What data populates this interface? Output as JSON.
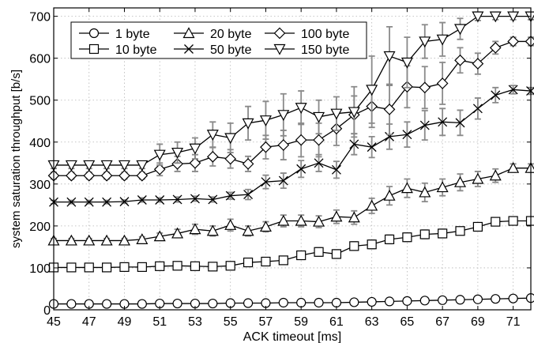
{
  "chart_data": {
    "type": "line",
    "title": "",
    "xlabel": "ACK timeout [ms]",
    "ylabel": "system saturation throughput [b/s]",
    "xlim": [
      45,
      72
    ],
    "ylim": [
      0,
      720
    ],
    "xticks": [
      45,
      47,
      49,
      51,
      53,
      55,
      57,
      59,
      61,
      63,
      65,
      67,
      69,
      71
    ],
    "yticks": [
      0,
      100,
      200,
      300,
      400,
      500,
      600,
      700
    ],
    "grid": true,
    "legend_position": "top-left",
    "x": [
      45,
      46,
      47,
      48,
      49,
      50,
      51,
      52,
      53,
      54,
      55,
      56,
      57,
      58,
      59,
      60,
      61,
      62,
      63,
      64,
      65,
      66,
      67,
      68,
      69,
      70,
      71,
      72
    ],
    "series": [
      {
        "name": "1 byte",
        "marker": "circle",
        "values": [
          14,
          14,
          14,
          14,
          14,
          14,
          15,
          15,
          15,
          15,
          16,
          16,
          16,
          17,
          17,
          17,
          17,
          18,
          19,
          20,
          21,
          22,
          23,
          24,
          25,
          26,
          27,
          28
        ],
        "errors": [
          2,
          2,
          2,
          2,
          2,
          2,
          2,
          2,
          2,
          2,
          2,
          2,
          2,
          2,
          2,
          2,
          2,
          2,
          2,
          3,
          3,
          3,
          3,
          3,
          3,
          3,
          3,
          3
        ]
      },
      {
        "name": "10 byte",
        "marker": "square",
        "values": [
          101,
          101,
          101,
          101,
          102,
          102,
          104,
          105,
          104,
          103,
          105,
          113,
          115,
          118,
          130,
          138,
          133,
          152,
          156,
          168,
          173,
          180,
          182,
          188,
          198,
          210,
          212,
          212
        ],
        "errors": [
          3,
          3,
          3,
          3,
          3,
          3,
          4,
          4,
          4,
          4,
          4,
          6,
          7,
          7,
          8,
          10,
          10,
          10,
          10,
          10,
          10,
          10,
          10,
          8,
          8,
          8,
          6,
          6
        ]
      },
      {
        "name": "20 byte",
        "marker": "triangle-up",
        "values": [
          165,
          165,
          165,
          165,
          165,
          168,
          175,
          182,
          192,
          188,
          202,
          188,
          198,
          212,
          212,
          210,
          222,
          220,
          248,
          272,
          290,
          280,
          292,
          304,
          312,
          320,
          338,
          338
        ],
        "errors": [
          5,
          5,
          5,
          5,
          5,
          6,
          8,
          10,
          12,
          12,
          14,
          12,
          12,
          14,
          14,
          14,
          16,
          16,
          18,
          22,
          22,
          22,
          20,
          20,
          18,
          16,
          10,
          10
        ]
      },
      {
        "name": "50 byte",
        "marker": "x",
        "values": [
          257,
          257,
          257,
          257,
          258,
          262,
          262,
          263,
          265,
          263,
          272,
          275,
          305,
          308,
          336,
          350,
          334,
          395,
          388,
          413,
          418,
          440,
          448,
          446,
          480,
          512,
          525,
          522
        ],
        "errors": [
          4,
          4,
          4,
          4,
          4,
          5,
          5,
          6,
          6,
          6,
          8,
          12,
          16,
          18,
          20,
          20,
          20,
          25,
          25,
          30,
          30,
          35,
          32,
          30,
          25,
          18,
          10,
          8
        ]
      },
      {
        "name": "100 byte",
        "marker": "diamond",
        "values": [
          320,
          320,
          320,
          320,
          320,
          320,
          335,
          348,
          350,
          365,
          360,
          348,
          388,
          393,
          405,
          405,
          432,
          465,
          485,
          478,
          532,
          530,
          540,
          595,
          587,
          625,
          640,
          640
        ],
        "errors": [
          8,
          8,
          8,
          8,
          8,
          8,
          15,
          18,
          20,
          22,
          22,
          18,
          28,
          35,
          40,
          40,
          40,
          45,
          50,
          60,
          50,
          50,
          50,
          30,
          25,
          15,
          10,
          10
        ]
      },
      {
        "name": "150 byte",
        "marker": "triangle-down",
        "values": [
          345,
          345,
          345,
          345,
          345,
          345,
          370,
          375,
          385,
          418,
          410,
          445,
          452,
          465,
          482,
          460,
          468,
          472,
          525,
          605,
          590,
          640,
          645,
          670,
          700,
          700,
          700,
          700
        ],
        "errors": [
          8,
          8,
          8,
          8,
          8,
          8,
          25,
          25,
          25,
          30,
          35,
          40,
          45,
          50,
          40,
          40,
          40,
          60,
          80,
          70,
          60,
          40,
          40,
          25,
          10,
          8,
          8,
          8
        ]
      }
    ]
  }
}
